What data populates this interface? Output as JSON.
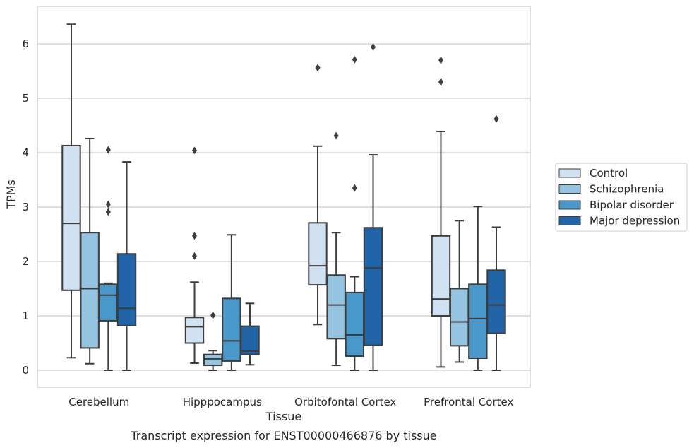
{
  "chart_data": {
    "type": "box",
    "title": "",
    "caption": "Transcript expression for ENST00000466876 by tissue",
    "xlabel": "Tissue",
    "ylabel": "TPMs",
    "ylim": [
      -0.3,
      6.7
    ],
    "yticks": [
      0,
      1,
      2,
      3,
      4,
      5,
      6
    ],
    "grid": true,
    "legend_position": "right",
    "categories": [
      "Cerebellum",
      "Hipppocampus",
      "Orbitofontal Cortex",
      "Prefrontal Cortex"
    ],
    "series": [
      {
        "name": "Control",
        "color": "#d0e1f2",
        "boxes": [
          {
            "whislo": 0.23,
            "q1": 1.47,
            "med": 2.7,
            "q3": 4.13,
            "whishi": 6.36,
            "fliers": []
          },
          {
            "whislo": 0.13,
            "q1": 0.5,
            "med": 0.8,
            "q3": 0.97,
            "whishi": 1.62,
            "fliers": [
              4.04,
              2.47,
              2.1
            ]
          },
          {
            "whislo": 0.84,
            "q1": 1.57,
            "med": 1.92,
            "q3": 2.71,
            "whishi": 4.12,
            "fliers": [
              5.56
            ]
          },
          {
            "whislo": 0.06,
            "q1": 1.0,
            "med": 1.31,
            "q3": 2.47,
            "whishi": 4.39,
            "fliers": [
              5.7,
              5.3
            ]
          }
        ]
      },
      {
        "name": "Schizophrenia",
        "color": "#94c4df",
        "boxes": [
          {
            "whislo": 0.12,
            "q1": 0.41,
            "med": 1.5,
            "q3": 2.53,
            "whishi": 4.26,
            "fliers": []
          },
          {
            "whislo": 0.0,
            "q1": 0.09,
            "med": 0.21,
            "q3": 0.29,
            "whishi": 0.36,
            "fliers": [
              1.01
            ]
          },
          {
            "whislo": 0.09,
            "q1": 0.58,
            "med": 1.2,
            "q3": 1.75,
            "whishi": 2.53,
            "fliers": [
              4.31
            ]
          },
          {
            "whislo": 0.15,
            "q1": 0.45,
            "med": 0.89,
            "q3": 1.5,
            "whishi": 2.75,
            "fliers": []
          }
        ]
      },
      {
        "name": "Bipolar disorder",
        "color": "#4a98c9",
        "boxes": [
          {
            "whislo": 0.0,
            "q1": 0.91,
            "med": 1.38,
            "q3": 1.58,
            "whishi": 1.6,
            "fliers": [
              4.05,
              3.05,
              2.91
            ]
          },
          {
            "whislo": 0.0,
            "q1": 0.17,
            "med": 0.54,
            "q3": 1.32,
            "whishi": 2.49,
            "fliers": []
          },
          {
            "whislo": 0.0,
            "q1": 0.26,
            "med": 0.65,
            "q3": 1.43,
            "whishi": 1.72,
            "fliers": [
              5.71,
              3.35
            ]
          },
          {
            "whislo": 0.0,
            "q1": 0.22,
            "med": 0.95,
            "q3": 1.58,
            "whishi": 3.01,
            "fliers": []
          }
        ]
      },
      {
        "name": "Major depression",
        "color": "#2264a8",
        "boxes": [
          {
            "whislo": 0.0,
            "q1": 0.82,
            "med": 1.14,
            "q3": 2.14,
            "whishi": 3.83,
            "fliers": []
          },
          {
            "whislo": 0.1,
            "q1": 0.29,
            "med": 0.35,
            "q3": 0.81,
            "whishi": 1.23,
            "fliers": []
          },
          {
            "whislo": 0.0,
            "q1": 0.46,
            "med": 1.88,
            "q3": 2.62,
            "whishi": 3.96,
            "fliers": [
              5.94
            ]
          },
          {
            "whislo": 0.0,
            "q1": 0.68,
            "med": 1.2,
            "q3": 1.84,
            "whishi": 2.63,
            "fliers": [
              4.62
            ]
          }
        ]
      }
    ]
  }
}
